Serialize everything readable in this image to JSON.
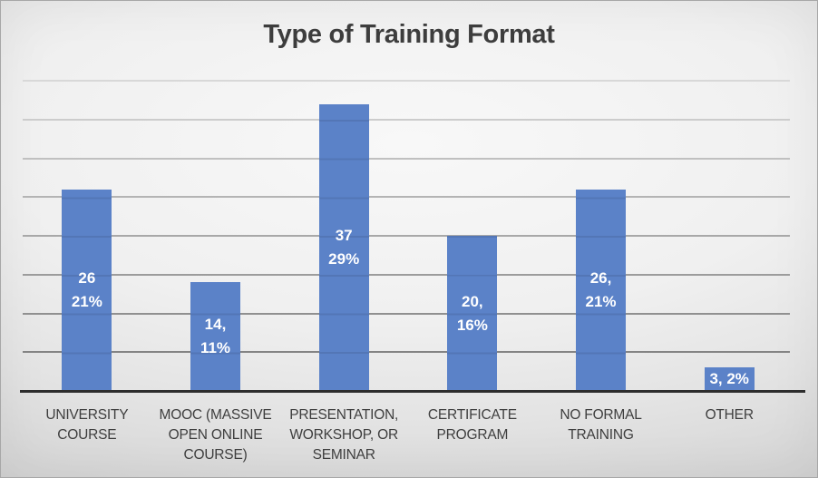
{
  "title": "Type of Training Format",
  "colors": {
    "bar_fill": "#5b82c8",
    "title_text": "#3d3d3d",
    "category_text": "#3e3e3e",
    "data_label_text": "#ffffff",
    "axis_line": "#2d2d2d",
    "gridline_top": "#d8d8d8",
    "gridline_bottom": "#848484",
    "background_center": "#f8f8f8",
    "background_edge": "#c6c6c6"
  },
  "chart_data": {
    "type": "bar",
    "title": "Type of Training Format",
    "categories": [
      "UNIVERSITY COURSE",
      "MOOC (MASSIVE OPEN ONLINE COURSE)",
      "PRESENTATION, WORKSHOP, OR SEMINAR",
      "CERTIFICATE PROGRAM",
      "NO FORMAL TRAINING",
      "OTHER"
    ],
    "values": [
      26,
      14,
      37,
      20,
      26,
      3
    ],
    "percentages": [
      "21%",
      "11%",
      "29%",
      "16%",
      "21%",
      "2%"
    ],
    "data_labels": [
      [
        "26",
        "21%"
      ],
      [
        "14,",
        "11%"
      ],
      [
        "37",
        "29%"
      ],
      [
        "20,",
        "16%"
      ],
      [
        "26,",
        "21%"
      ],
      [
        "3, 2%"
      ]
    ],
    "xlabel": "",
    "ylabel": "",
    "ylim": [
      0,
      40
    ],
    "gridline_interval": 5,
    "grid": true,
    "legend": false,
    "y_axis_labels_visible": false
  }
}
